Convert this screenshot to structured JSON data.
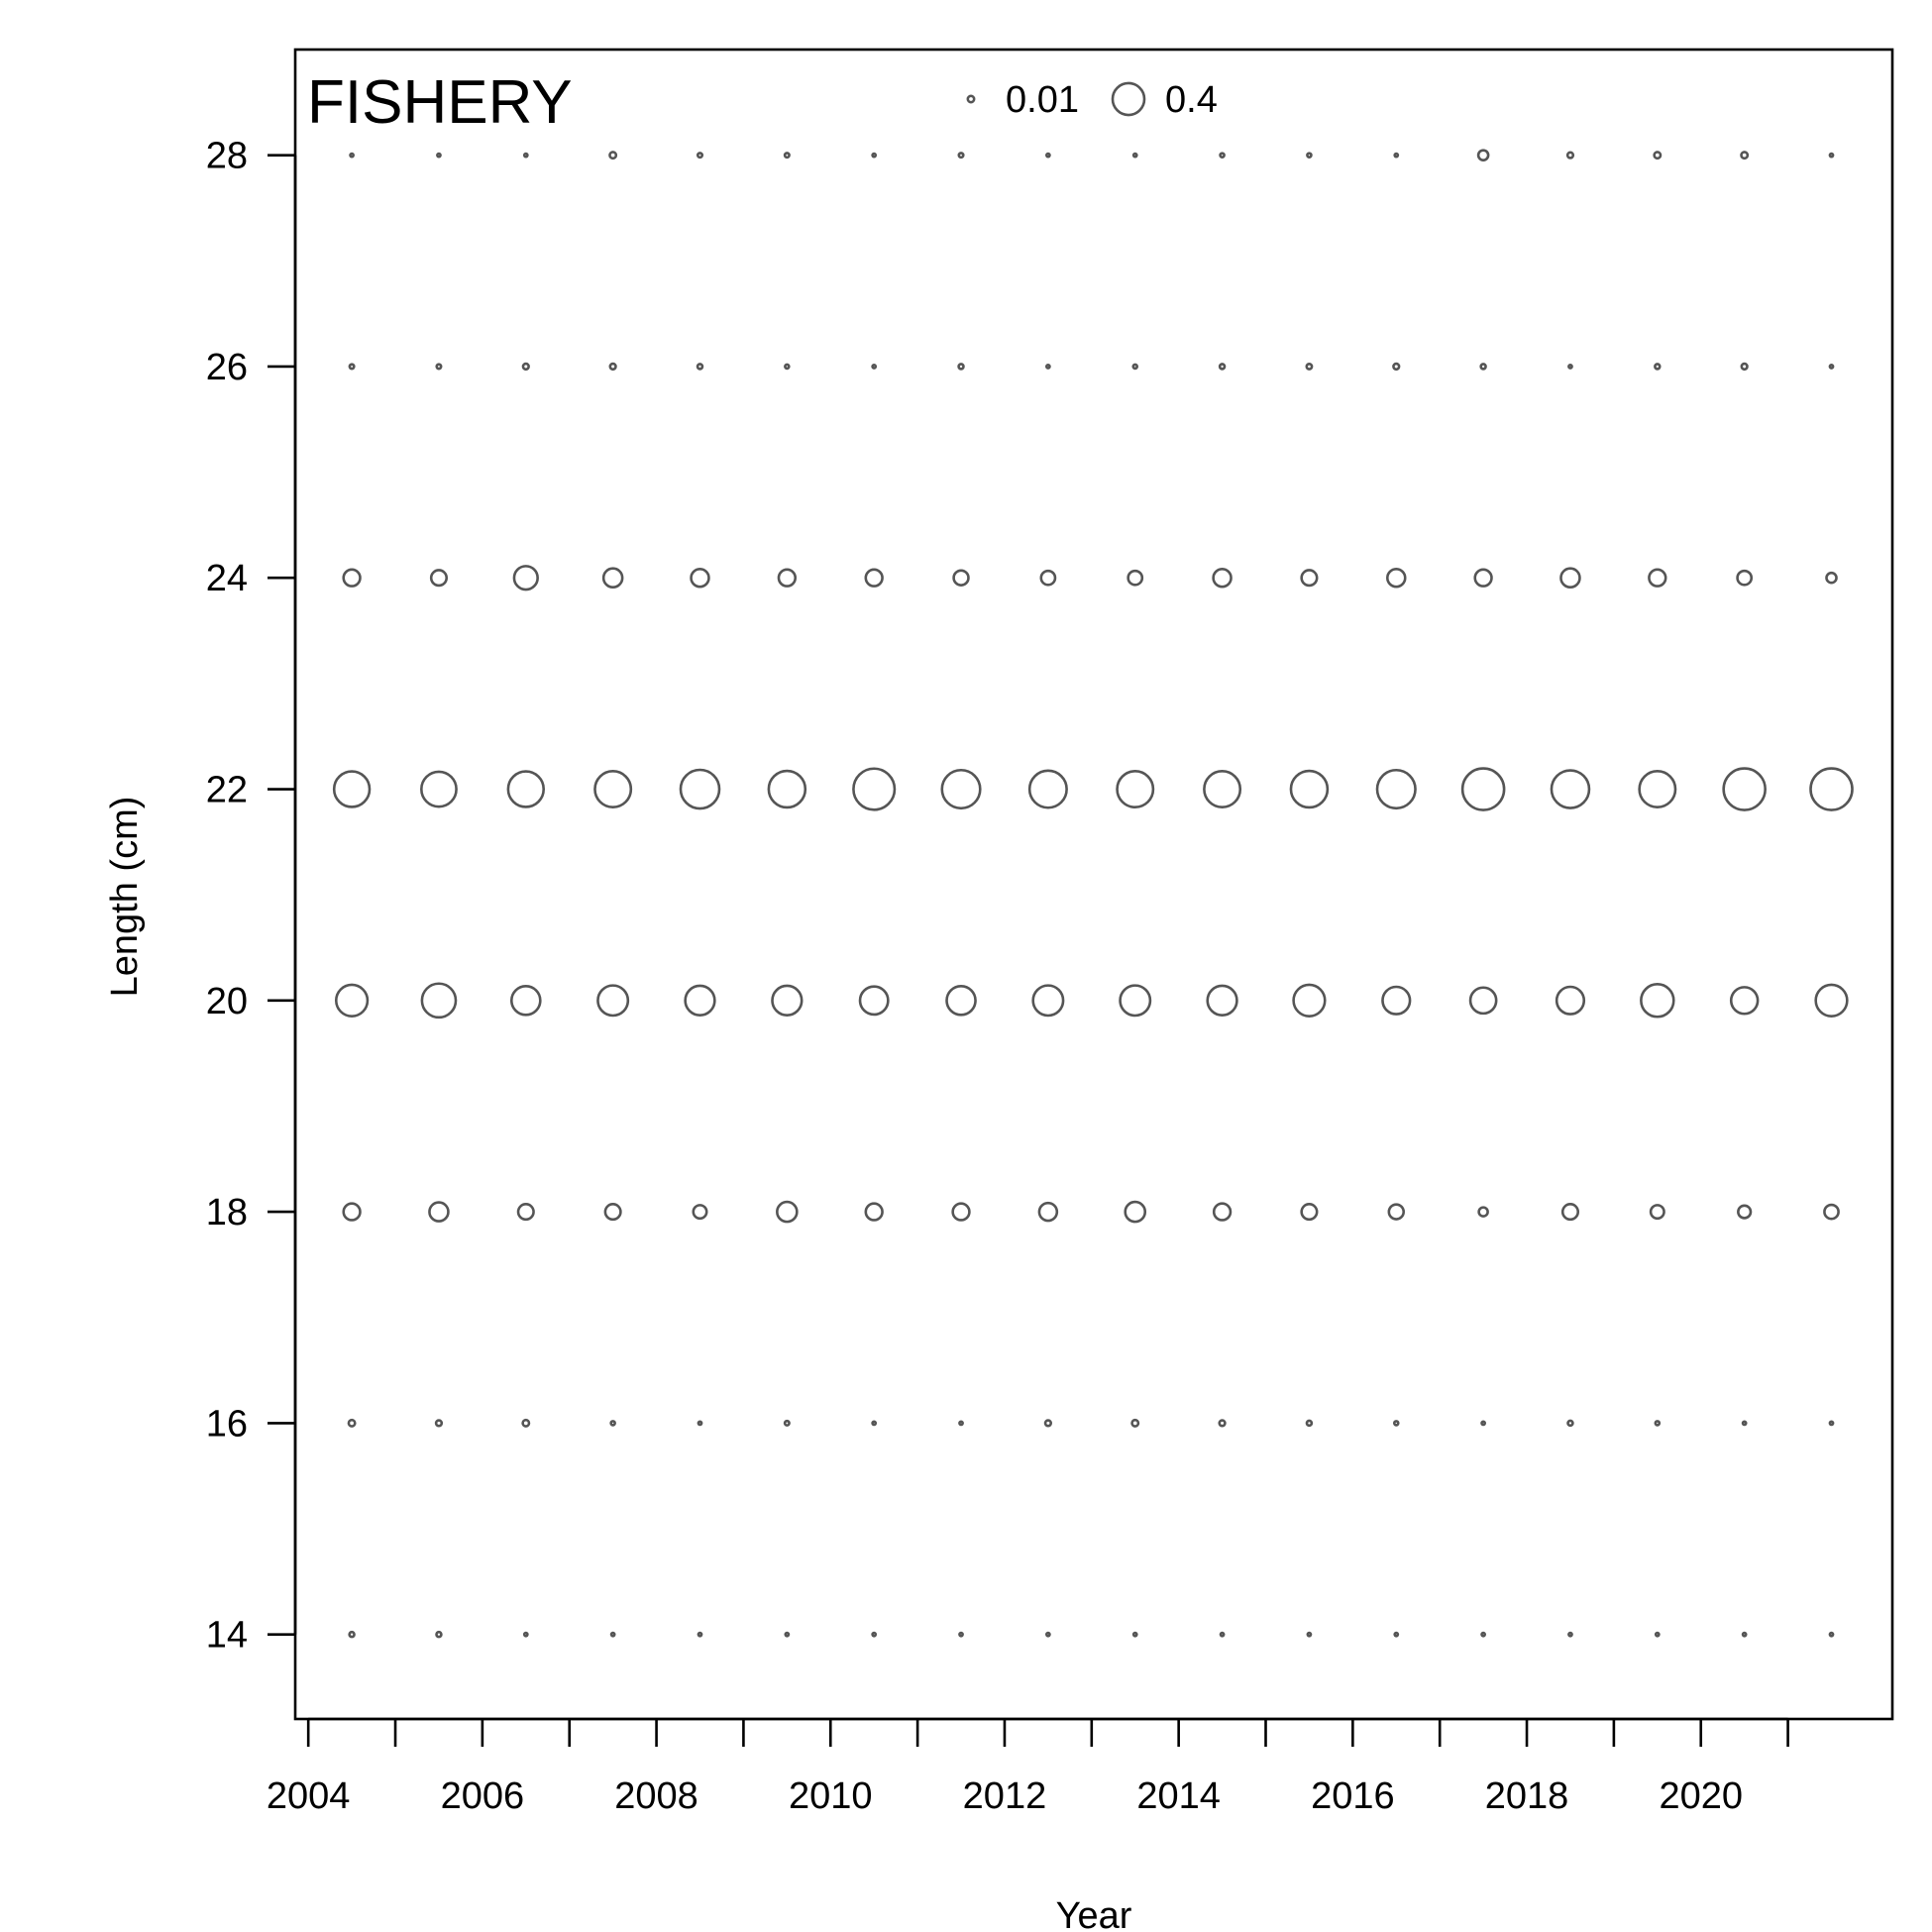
{
  "chart_data": {
    "type": "bubble",
    "title": "FISHERY",
    "xlabel": "Year",
    "ylabel": "Length (cm)",
    "xlim": [
      2003.85,
      2022.2
    ],
    "ylim": [
      13.2,
      29.0
    ],
    "x_ticks": [
      2004,
      2006,
      2008,
      2010,
      2012,
      2014,
      2016,
      2018,
      2020
    ],
    "x_minor_ticks": [
      2004,
      2005,
      2006,
      2007,
      2008,
      2009,
      2010,
      2011,
      2012,
      2013,
      2014,
      2015,
      2016,
      2017,
      2018,
      2019,
      2020,
      2021
    ],
    "y_ticks": [
      14,
      16,
      18,
      20,
      22,
      24,
      26,
      28
    ],
    "legend": {
      "placement": "top-center",
      "entries": [
        {
          "label": "0.01",
          "value": 0.01
        },
        {
          "label": "0.4",
          "value": 0.4
        }
      ]
    },
    "years": [
      2004.5,
      2005.5,
      2006.5,
      2007.5,
      2008.5,
      2009.5,
      2010.5,
      2011.5,
      2012.5,
      2013.5,
      2014.5,
      2015.5,
      2016.5,
      2017.5,
      2018.5,
      2019.5,
      2020.5,
      2021.5
    ],
    "lengths": [
      14,
      16,
      18,
      20,
      22,
      24,
      26,
      28
    ],
    "proportions": {
      "14": [
        0.006,
        0.006,
        0.002,
        0.002,
        0.002,
        0.002,
        0.002,
        0.002,
        0.002,
        0.002,
        0.002,
        0.002,
        0.002,
        0.002,
        0.002,
        0.002,
        0.002,
        0.002
      ],
      "16": [
        0.01,
        0.008,
        0.01,
        0.004,
        0.001,
        0.005,
        0.001,
        0.002,
        0.008,
        0.01,
        0.008,
        0.006,
        0.004,
        0.002,
        0.006,
        0.004,
        0.001,
        0.001
      ],
      "18": [
        0.07,
        0.09,
        0.06,
        0.06,
        0.045,
        0.1,
        0.07,
        0.07,
        0.08,
        0.1,
        0.07,
        0.06,
        0.055,
        0.02,
        0.06,
        0.045,
        0.04,
        0.05
      ],
      "20": [
        0.25,
        0.29,
        0.21,
        0.23,
        0.22,
        0.22,
        0.2,
        0.21,
        0.23,
        0.23,
        0.22,
        0.25,
        0.19,
        0.17,
        0.19,
        0.27,
        0.18,
        0.25
      ],
      "22": [
        0.32,
        0.31,
        0.32,
        0.33,
        0.38,
        0.34,
        0.43,
        0.37,
        0.35,
        0.33,
        0.33,
        0.34,
        0.37,
        0.44,
        0.36,
        0.33,
        0.44,
        0.44
      ],
      "24": [
        0.07,
        0.06,
        0.14,
        0.09,
        0.08,
        0.07,
        0.07,
        0.055,
        0.05,
        0.05,
        0.08,
        0.06,
        0.08,
        0.07,
        0.09,
        0.07,
        0.05,
        0.025
      ],
      "26": [
        0.005,
        0.005,
        0.008,
        0.008,
        0.006,
        0.004,
        0.001,
        0.006,
        0.001,
        0.004,
        0.006,
        0.007,
        0.008,
        0.006,
        0.001,
        0.006,
        0.008,
        0.001
      ],
      "28": [
        0.001,
        0.001,
        0.001,
        0.01,
        0.005,
        0.005,
        0.001,
        0.005,
        0.001,
        0.001,
        0.004,
        0.004,
        0.001,
        0.025,
        0.008,
        0.01,
        0.01,
        0.001
      ]
    }
  }
}
